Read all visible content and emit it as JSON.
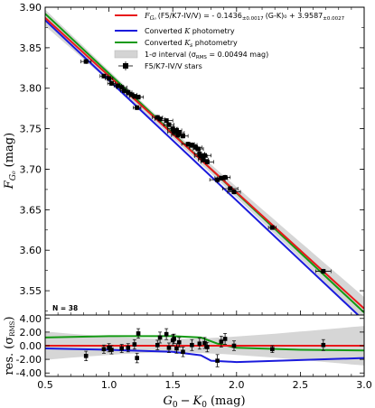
{
  "chart_data": {
    "type": "scatter",
    "main_panel": {
      "xlim": [
        0.5,
        3.0
      ],
      "ylim": [
        3.52,
        3.9
      ],
      "ylabel_var": "F",
      "ylabel_sub": "G₀",
      "ylabel_unit": "(mag)",
      "yticks": [
        "3.55",
        "3.60",
        "3.65",
        "3.70",
        "3.75",
        "3.80",
        "3.85",
        "3.90"
      ],
      "annotation": "N = 38",
      "legend_position": "top-right",
      "fit": {
        "name_prefix": "F",
        "name_sub": "G₀",
        "name_suffix": "(F5/K7-IV/V) = - 0.1436",
        "slope_err": "±0.0017",
        "mid": "(G-K)₀ + 3.9587",
        "int_err": "±0.0027",
        "slope": -0.1436,
        "intercept": 3.9587,
        "color": "#e8191b"
      },
      "lines": [
        {
          "name_prefix": "Converted ",
          "name_var": "K",
          "name_suffix": " photometry",
          "color": "#1a1adc",
          "x": [
            0.5,
            3.0
          ],
          "y": [
            3.884,
            3.513
          ]
        },
        {
          "name_prefix": "Converted ",
          "name_var": "K",
          "name_sub": "s",
          "name_suffix": " photometry",
          "color": "#139a13",
          "x": [
            0.5,
            3.0
          ],
          "y": [
            3.892,
            3.523
          ]
        }
      ],
      "band": {
        "name": "1-σ interval (σ",
        "name_sub": "RMS",
        "name_suffix": " = 0.00494 mag)",
        "color": "#c8c8c8"
      },
      "points_name": "F5/K7-IV/V stars",
      "points": [
        {
          "x": 0.82,
          "y": 3.833,
          "xe": 0.04,
          "ye": 0.003
        },
        {
          "x": 0.96,
          "y": 3.815,
          "xe": 0.03,
          "ye": 0.003
        },
        {
          "x": 1.0,
          "y": 3.812,
          "xe": 0.03,
          "ye": 0.003
        },
        {
          "x": 1.02,
          "y": 3.806,
          "xe": 0.03,
          "ye": 0.003
        },
        {
          "x": 1.07,
          "y": 3.803,
          "xe": 0.03,
          "ye": 0.003
        },
        {
          "x": 1.1,
          "y": 3.801,
          "xe": 0.04,
          "ye": 0.003
        },
        {
          "x": 1.12,
          "y": 3.797,
          "xe": 0.03,
          "ye": 0.003
        },
        {
          "x": 1.15,
          "y": 3.795,
          "xe": 0.03,
          "ye": 0.003
        },
        {
          "x": 1.18,
          "y": 3.792,
          "xe": 0.04,
          "ye": 0.003
        },
        {
          "x": 1.2,
          "y": 3.79,
          "xe": 0.04,
          "ye": 0.003
        },
        {
          "x": 1.22,
          "y": 3.776,
          "xe": 0.03,
          "ye": 0.003
        },
        {
          "x": 1.23,
          "y": 3.789,
          "xe": 0.04,
          "ye": 0.003
        },
        {
          "x": 1.38,
          "y": 3.764,
          "xe": 0.04,
          "ye": 0.003
        },
        {
          "x": 1.4,
          "y": 3.762,
          "xe": 0.04,
          "ye": 0.003
        },
        {
          "x": 1.45,
          "y": 3.76,
          "xe": 0.05,
          "ye": 0.003
        },
        {
          "x": 1.47,
          "y": 3.755,
          "xe": 0.04,
          "ye": 0.003
        },
        {
          "x": 1.5,
          "y": 3.75,
          "xe": 0.04,
          "ye": 0.004
        },
        {
          "x": 1.51,
          "y": 3.746,
          "xe": 0.05,
          "ye": 0.003
        },
        {
          "x": 1.53,
          "y": 3.748,
          "xe": 0.04,
          "ye": 0.004
        },
        {
          "x": 1.54,
          "y": 3.742,
          "xe": 0.05,
          "ye": 0.003
        },
        {
          "x": 1.55,
          "y": 3.745,
          "xe": 0.04,
          "ye": 0.003
        },
        {
          "x": 1.58,
          "y": 3.741,
          "xe": 0.04,
          "ye": 0.003
        },
        {
          "x": 1.62,
          "y": 3.731,
          "xe": 0.05,
          "ye": 0.003
        },
        {
          "x": 1.65,
          "y": 3.73,
          "xe": 0.04,
          "ye": 0.003
        },
        {
          "x": 1.68,
          "y": 3.727,
          "xe": 0.05,
          "ye": 0.004
        },
        {
          "x": 1.7,
          "y": 3.725,
          "xe": 0.04,
          "ye": 0.003
        },
        {
          "x": 1.71,
          "y": 3.719,
          "xe": 0.04,
          "ye": 0.004
        },
        {
          "x": 1.72,
          "y": 3.716,
          "xe": 0.05,
          "ye": 0.003
        },
        {
          "x": 1.74,
          "y": 3.712,
          "xe": 0.04,
          "ye": 0.003
        },
        {
          "x": 1.75,
          "y": 3.717,
          "xe": 0.05,
          "ye": 0.004
        },
        {
          "x": 1.77,
          "y": 3.709,
          "xe": 0.05,
          "ye": 0.003
        },
        {
          "x": 1.85,
          "y": 3.687,
          "xe": 0.06,
          "ye": 0.004
        },
        {
          "x": 1.88,
          "y": 3.689,
          "xe": 0.05,
          "ye": 0.003
        },
        {
          "x": 1.91,
          "y": 3.69,
          "xe": 0.04,
          "ye": 0.003
        },
        {
          "x": 1.95,
          "y": 3.676,
          "xe": 0.06,
          "ye": 0.003
        },
        {
          "x": 1.98,
          "y": 3.672,
          "xe": 0.05,
          "ye": 0.003
        },
        {
          "x": 2.28,
          "y": 3.628,
          "xe": 0.03,
          "ye": 0.002
        },
        {
          "x": 2.68,
          "y": 3.574,
          "xe": 0.06,
          "ye": 0.003
        }
      ]
    },
    "residual_panel": {
      "xlim": [
        0.5,
        3.0
      ],
      "ylim": [
        -4.5,
        4.5
      ],
      "ylabel": "res. (σ",
      "ylabel_sub": "RMS",
      "ylabel_end": ")",
      "xlabel_vars": [
        "G",
        "K"
      ],
      "xlabel_subs": [
        "0",
        "0"
      ],
      "xlabel_unit": "(mag)",
      "yticks": [
        "4.00",
        "2.00",
        "0.00",
        "-2.00",
        "-4.00"
      ],
      "xticks": [
        "0.5",
        "1.0",
        "1.5",
        "2.0",
        "2.5",
        "3.0"
      ],
      "lines": [
        {
          "name": "K",
          "color": "#1a1adc",
          "x": [
            0.5,
            1.0,
            1.5,
            1.72,
            1.8,
            2.0,
            2.5,
            3.0
          ],
          "y": [
            -0.4,
            -0.6,
            -0.9,
            -1.4,
            -2.2,
            -2.4,
            -2.1,
            -1.8
          ]
        },
        {
          "name": "Ks",
          "color": "#139a13",
          "x": [
            0.5,
            1.0,
            1.5,
            1.72,
            1.85,
            2.0,
            2.5,
            3.0
          ],
          "y": [
            1.2,
            1.4,
            1.4,
            1.2,
            0.3,
            -0.3,
            -0.6,
            -0.7
          ]
        }
      ],
      "points": [
        {
          "x": 0.82,
          "y": -1.5,
          "e": 0.7
        },
        {
          "x": 0.96,
          "y": -0.5,
          "e": 0.6
        },
        {
          "x": 1.0,
          "y": -0.3,
          "e": 0.6
        },
        {
          "x": 1.02,
          "y": -0.6,
          "e": 0.6
        },
        {
          "x": 1.1,
          "y": -0.4,
          "e": 0.6
        },
        {
          "x": 1.15,
          "y": -0.3,
          "e": 0.6
        },
        {
          "x": 1.2,
          "y": 0.2,
          "e": 0.7
        },
        {
          "x": 1.22,
          "y": -1.8,
          "e": 0.7
        },
        {
          "x": 1.23,
          "y": 1.8,
          "e": 0.7
        },
        {
          "x": 1.38,
          "y": 0.1,
          "e": 0.7
        },
        {
          "x": 1.4,
          "y": 1.2,
          "e": 0.8
        },
        {
          "x": 1.45,
          "y": 1.7,
          "e": 0.8
        },
        {
          "x": 1.47,
          "y": -0.3,
          "e": 0.7
        },
        {
          "x": 1.5,
          "y": 0.8,
          "e": 0.8
        },
        {
          "x": 1.51,
          "y": 1.0,
          "e": 0.7
        },
        {
          "x": 1.53,
          "y": -0.4,
          "e": 0.7
        },
        {
          "x": 1.55,
          "y": 0.5,
          "e": 0.7
        },
        {
          "x": 1.58,
          "y": -0.9,
          "e": 0.7
        },
        {
          "x": 1.65,
          "y": 0.1,
          "e": 0.8
        },
        {
          "x": 1.71,
          "y": 0.3,
          "e": 0.8
        },
        {
          "x": 1.75,
          "y": 0.4,
          "e": 0.8
        },
        {
          "x": 1.77,
          "y": -0.2,
          "e": 0.7
        },
        {
          "x": 1.85,
          "y": -2.2,
          "e": 0.9
        },
        {
          "x": 1.88,
          "y": 0.6,
          "e": 0.8
        },
        {
          "x": 1.91,
          "y": 1.0,
          "e": 0.8
        },
        {
          "x": 1.98,
          "y": 0.0,
          "e": 0.7
        },
        {
          "x": 2.28,
          "y": -0.5,
          "e": 0.5
        },
        {
          "x": 2.68,
          "y": 0.1,
          "e": 0.8
        }
      ]
    }
  }
}
